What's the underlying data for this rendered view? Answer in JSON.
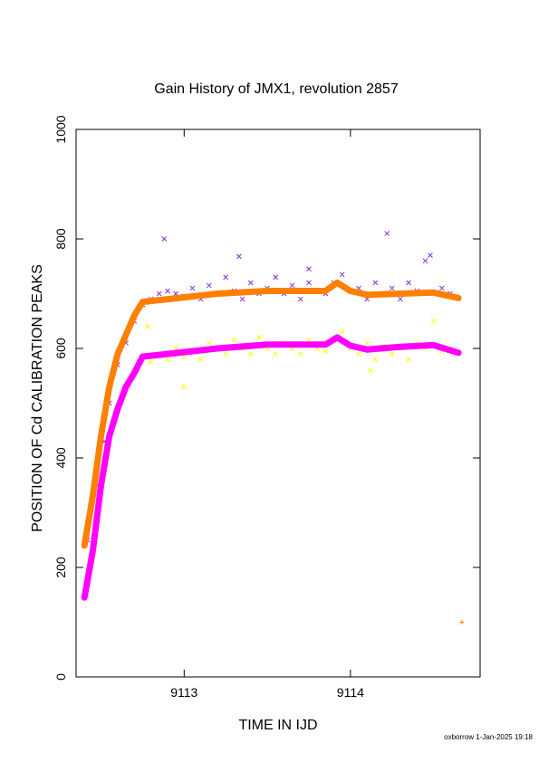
{
  "chart_data": {
    "type": "scatter",
    "title": "Gain History of JMX1, revolution 2857",
    "xlabel": "TIME IN IJD",
    "ylabel": "POSITION OF Cd CALIBRATION PEAKS",
    "xlim": [
      9112.35,
      9114.78
    ],
    "ylim": [
      0,
      1000
    ],
    "x_ticks": [
      9113,
      9114
    ],
    "y_ticks": [
      0,
      200,
      400,
      600,
      800,
      1000
    ],
    "grid": false,
    "legend": "none",
    "series": [
      {
        "marker": "x",
        "color": "#8a2be2",
        "points": [
          [
            9112.42,
            250
          ],
          [
            9112.48,
            350
          ],
          [
            9112.52,
            430
          ],
          [
            9112.55,
            500
          ],
          [
            9112.6,
            570
          ],
          [
            9112.65,
            610
          ],
          [
            9112.7,
            650
          ],
          [
            9112.75,
            680
          ],
          [
            9112.8,
            690
          ],
          [
            9112.85,
            700
          ],
          [
            9112.9,
            705
          ],
          [
            9112.95,
            700
          ],
          [
            9113.0,
            695
          ],
          [
            9113.05,
            710
          ],
          [
            9113.1,
            690
          ],
          [
            9113.15,
            715
          ],
          [
            9113.2,
            700
          ],
          [
            9113.25,
            730
          ],
          [
            9113.3,
            705
          ],
          [
            9113.35,
            690
          ],
          [
            9113.4,
            720
          ],
          [
            9113.45,
            700
          ],
          [
            9113.5,
            710
          ],
          [
            9113.55,
            730
          ],
          [
            9113.6,
            700
          ],
          [
            9113.65,
            715
          ],
          [
            9113.7,
            690
          ],
          [
            9113.75,
            720
          ],
          [
            9113.8,
            705
          ],
          [
            9113.85,
            700
          ],
          [
            9113.9,
            720
          ],
          [
            9113.95,
            735
          ],
          [
            9114.0,
            705
          ],
          [
            9114.05,
            710
          ],
          [
            9114.1,
            690
          ],
          [
            9114.15,
            720
          ],
          [
            9114.2,
            700
          ],
          [
            9114.25,
            710
          ],
          [
            9114.3,
            690
          ],
          [
            9114.35,
            720
          ],
          [
            9114.4,
            705
          ],
          [
            9114.45,
            760
          ],
          [
            9114.5,
            700
          ],
          [
            9114.55,
            710
          ],
          [
            9114.6,
            700
          ],
          [
            9112.88,
            800
          ],
          [
            9113.33,
            768
          ],
          [
            9114.22,
            810
          ],
          [
            9113.75,
            745
          ],
          [
            9114.48,
            770
          ]
        ]
      },
      {
        "marker": "x",
        "color": "#ffff00",
        "points": [
          [
            9112.5,
            420
          ],
          [
            9112.6,
            490
          ],
          [
            9112.7,
            560
          ],
          [
            9112.75,
            580
          ],
          [
            9112.8,
            575
          ],
          [
            9112.85,
            590
          ],
          [
            9112.9,
            580
          ],
          [
            9112.95,
            600
          ],
          [
            9113.0,
            585
          ],
          [
            9113.05,
            595
          ],
          [
            9113.1,
            580
          ],
          [
            9113.15,
            610
          ],
          [
            9113.2,
            600
          ],
          [
            9113.25,
            590
          ],
          [
            9113.3,
            615
          ],
          [
            9113.35,
            600
          ],
          [
            9113.4,
            590
          ],
          [
            9113.45,
            620
          ],
          [
            9113.5,
            600
          ],
          [
            9113.55,
            590
          ],
          [
            9113.6,
            610
          ],
          [
            9113.65,
            600
          ],
          [
            9113.7,
            590
          ],
          [
            9113.75,
            615
          ],
          [
            9113.8,
            600
          ],
          [
            9113.85,
            595
          ],
          [
            9113.9,
            620
          ],
          [
            9113.95,
            630
          ],
          [
            9114.0,
            600
          ],
          [
            9114.05,
            590
          ],
          [
            9114.1,
            610
          ],
          [
            9114.15,
            580
          ],
          [
            9114.2,
            605
          ],
          [
            9114.25,
            590
          ],
          [
            9114.3,
            600
          ],
          [
            9114.35,
            580
          ],
          [
            9114.4,
            610
          ],
          [
            9114.45,
            600
          ],
          [
            9114.5,
            650
          ],
          [
            9114.55,
            595
          ],
          [
            9114.6,
            600
          ],
          [
            9113.0,
            530
          ],
          [
            9112.78,
            640
          ],
          [
            9114.12,
            560
          ]
        ]
      },
      {
        "marker": "line-plus",
        "color": "#ff7f00",
        "points": [
          [
            9112.4,
            240
          ],
          [
            9112.45,
            330
          ],
          [
            9112.5,
            440
          ],
          [
            9112.55,
            530
          ],
          [
            9112.6,
            590
          ],
          [
            9112.65,
            625
          ],
          [
            9112.7,
            660
          ],
          [
            9112.75,
            685
          ],
          [
            9112.9,
            690
          ],
          [
            9113.2,
            700
          ],
          [
            9113.5,
            705
          ],
          [
            9113.85,
            705
          ],
          [
            9113.92,
            720
          ],
          [
            9114.0,
            705
          ],
          [
            9114.1,
            698
          ],
          [
            9114.3,
            700
          ],
          [
            9114.5,
            702
          ],
          [
            9114.65,
            692
          ]
        ]
      },
      {
        "marker": "line-plus",
        "color": "#ff00ff",
        "points": [
          [
            9112.4,
            145
          ],
          [
            9112.45,
            230
          ],
          [
            9112.5,
            350
          ],
          [
            9112.55,
            440
          ],
          [
            9112.6,
            490
          ],
          [
            9112.65,
            530
          ],
          [
            9112.7,
            555
          ],
          [
            9112.75,
            585
          ],
          [
            9112.9,
            590
          ],
          [
            9113.2,
            600
          ],
          [
            9113.5,
            607
          ],
          [
            9113.85,
            607
          ],
          [
            9113.92,
            620
          ],
          [
            9114.0,
            605
          ],
          [
            9114.1,
            598
          ],
          [
            9114.3,
            603
          ],
          [
            9114.5,
            606
          ],
          [
            9114.65,
            592
          ]
        ]
      },
      {
        "marker": "+",
        "color": "#ff7f00",
        "points": [
          [
            9114.67,
            100
          ]
        ]
      }
    ]
  },
  "footer": "oxborrow  1-Jan-2025 19:18"
}
